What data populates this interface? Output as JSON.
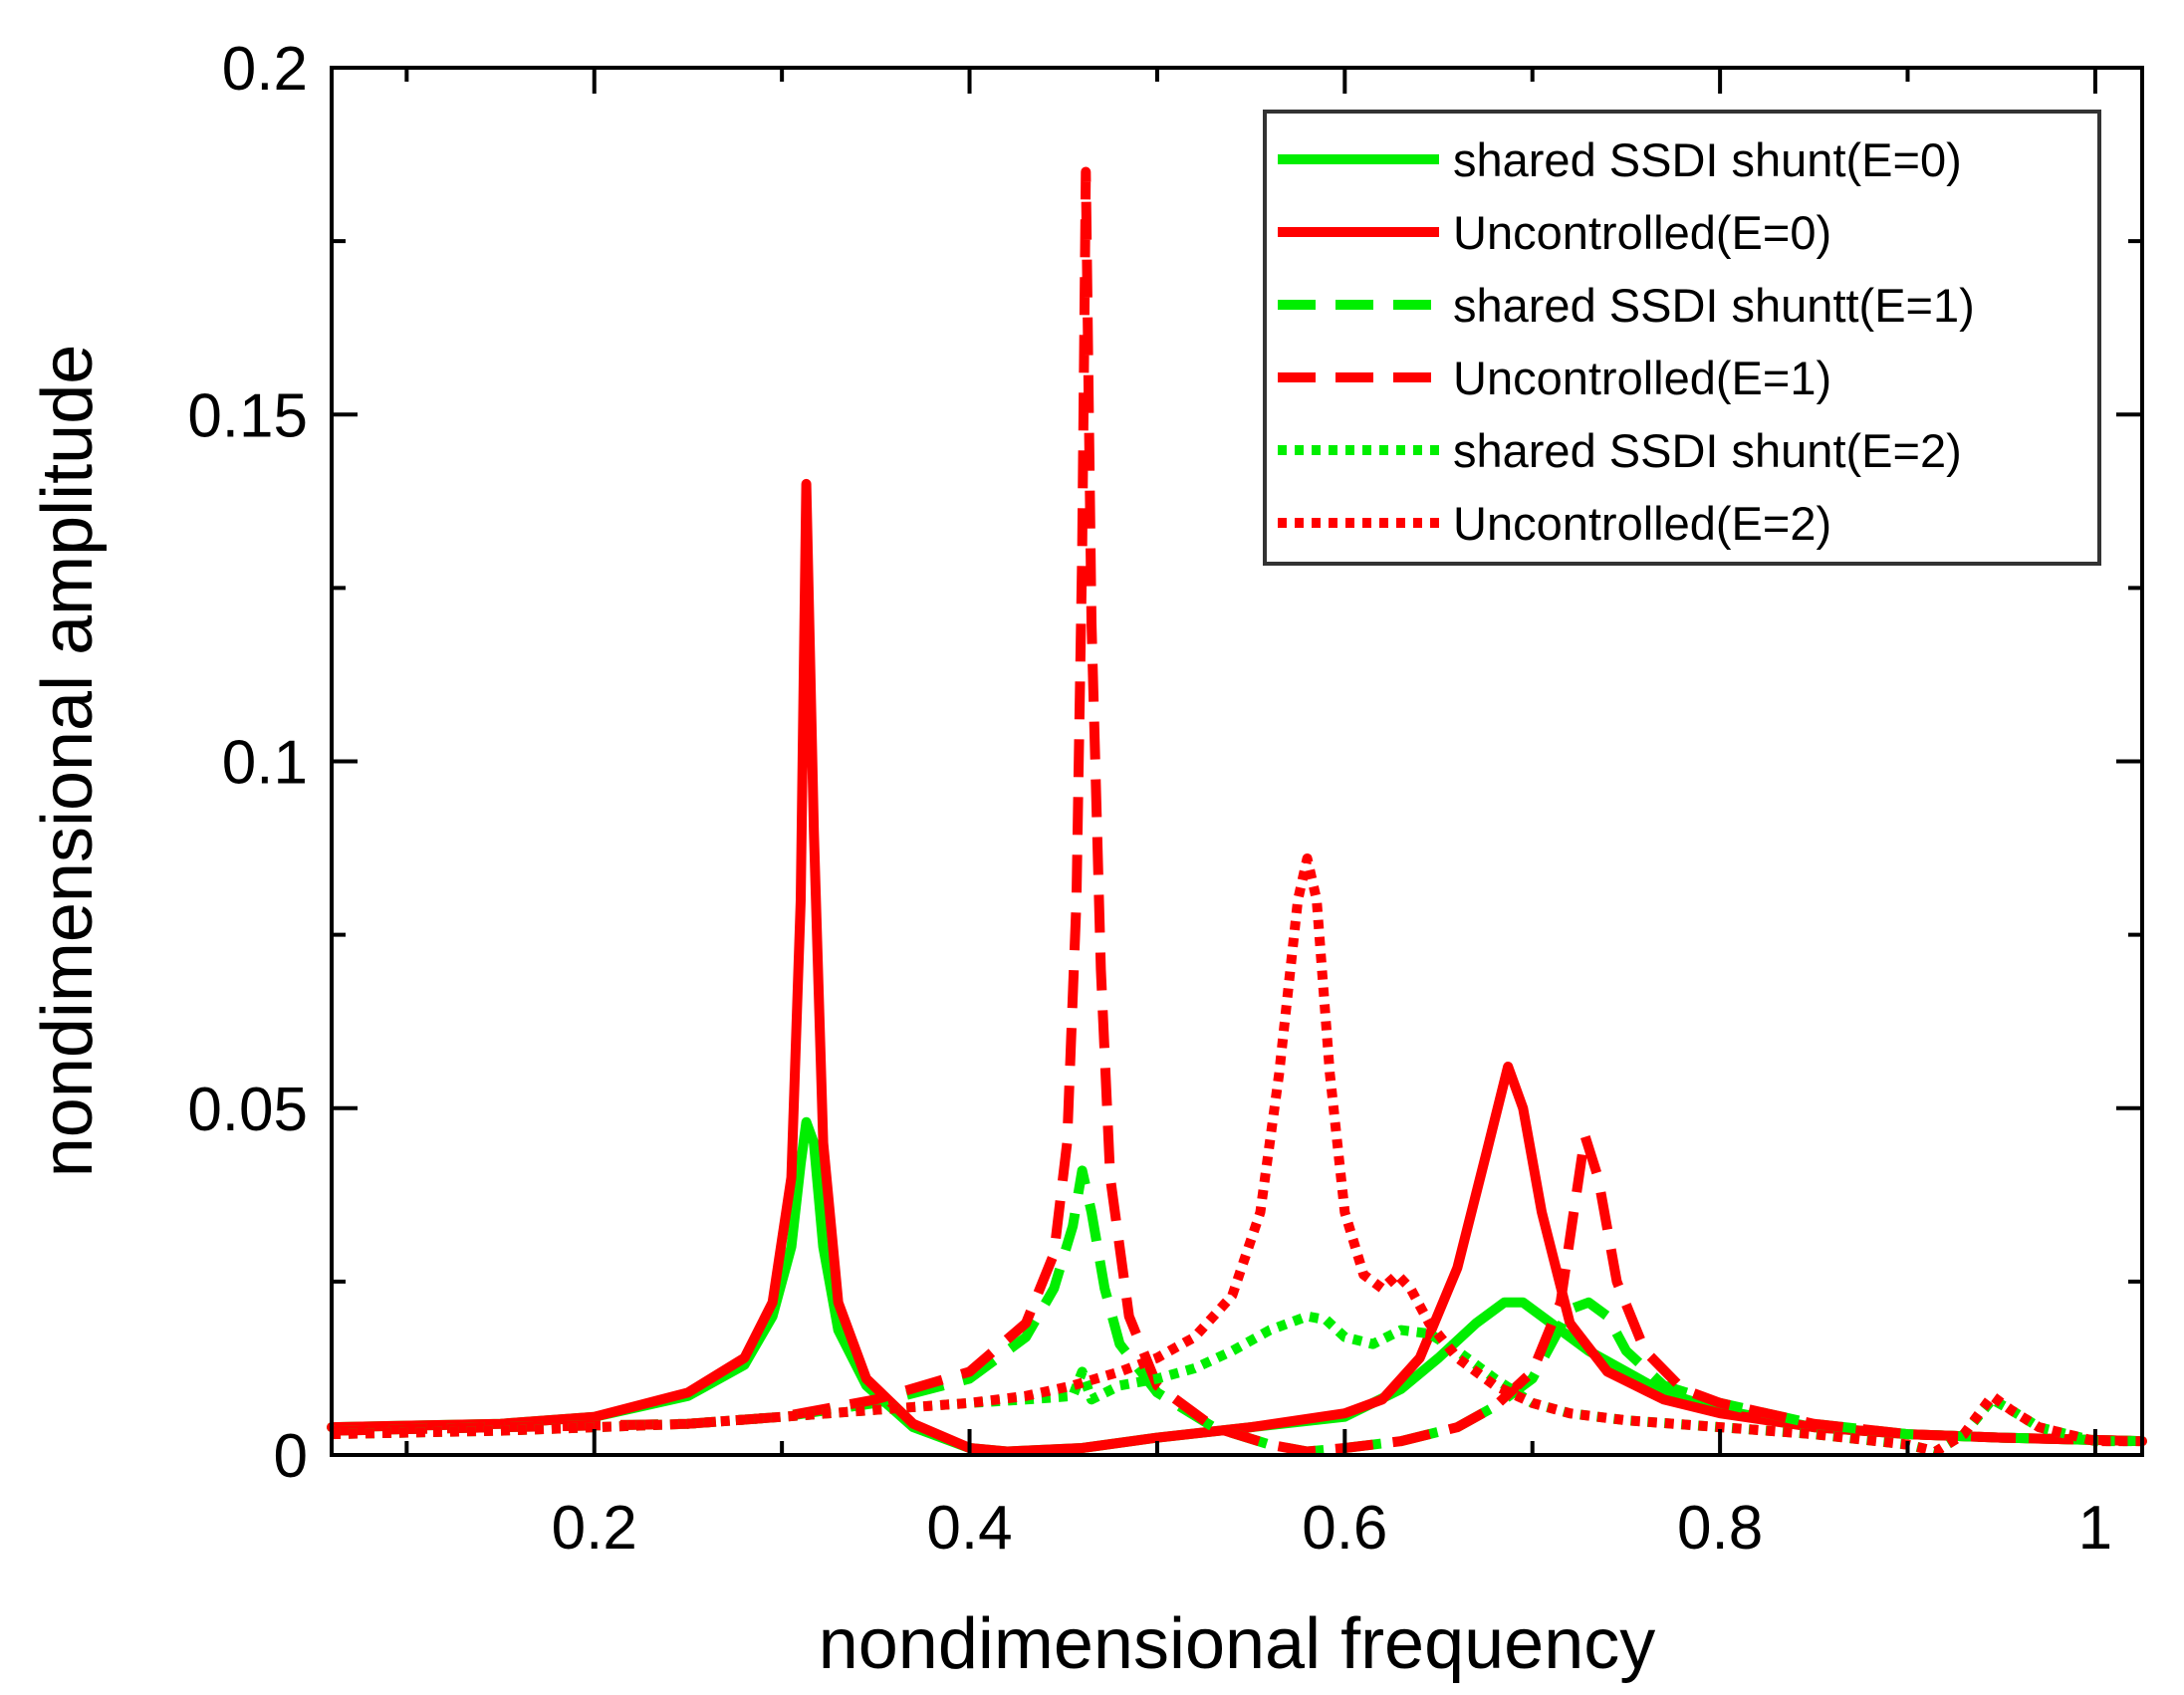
{
  "chart_data": {
    "type": "line",
    "title": "",
    "xlabel": "nondimensional frequency",
    "ylabel": "nondimensional amplitude",
    "xlim": [
      0.06,
      1.025
    ],
    "ylim": [
      0,
      0.2
    ],
    "x_ticks": [
      {
        "value": 0.2,
        "label": "0.2"
      },
      {
        "value": 0.4,
        "label": "0.4"
      },
      {
        "value": 0.6,
        "label": "0.6"
      },
      {
        "value": 0.8,
        "label": "0.8"
      },
      {
        "value": 1.0,
        "label": "1"
      }
    ],
    "y_ticks": [
      {
        "value": 0,
        "label": "0"
      },
      {
        "value": 0.05,
        "label": "0.05"
      },
      {
        "value": 0.1,
        "label": "0.1"
      },
      {
        "value": 0.15,
        "label": "0.15"
      },
      {
        "value": 0.2,
        "label": "0.2"
      }
    ],
    "legend_position": "top-right",
    "grid": false,
    "series": [
      {
        "name": "shared SSDI shunt(E=0)",
        "color": "#00ee00",
        "style": "solid",
        "points": [
          [
            0.06,
            0.004
          ],
          [
            0.15,
            0.0045
          ],
          [
            0.2,
            0.0055
          ],
          [
            0.25,
            0.0085
          ],
          [
            0.28,
            0.013
          ],
          [
            0.295,
            0.02
          ],
          [
            0.305,
            0.03
          ],
          [
            0.31,
            0.042
          ],
          [
            0.313,
            0.048
          ],
          [
            0.317,
            0.045
          ],
          [
            0.322,
            0.03
          ],
          [
            0.33,
            0.018
          ],
          [
            0.345,
            0.01
          ],
          [
            0.37,
            0.004
          ],
          [
            0.4,
            0.001
          ],
          [
            0.42,
            0.0005
          ],
          [
            0.46,
            0.001
          ],
          [
            0.5,
            0.0025
          ],
          [
            0.55,
            0.004
          ],
          [
            0.6,
            0.0055
          ],
          [
            0.63,
            0.0095
          ],
          [
            0.65,
            0.014
          ],
          [
            0.67,
            0.019
          ],
          [
            0.685,
            0.022
          ],
          [
            0.695,
            0.022
          ],
          [
            0.71,
            0.019
          ],
          [
            0.73,
            0.015
          ],
          [
            0.75,
            0.012
          ],
          [
            0.77,
            0.009
          ],
          [
            0.8,
            0.0065
          ],
          [
            0.85,
            0.004
          ],
          [
            0.9,
            0.003
          ],
          [
            0.95,
            0.0025
          ],
          [
            1.025,
            0.002
          ]
        ]
      },
      {
        "name": "Uncontrolled(E=0)",
        "color": "#ff0000",
        "style": "solid",
        "points": [
          [
            0.06,
            0.004
          ],
          [
            0.15,
            0.0045
          ],
          [
            0.2,
            0.0055
          ],
          [
            0.25,
            0.009
          ],
          [
            0.28,
            0.014
          ],
          [
            0.295,
            0.022
          ],
          [
            0.305,
            0.04
          ],
          [
            0.31,
            0.08
          ],
          [
            0.313,
            0.14
          ],
          [
            0.317,
            0.09
          ],
          [
            0.322,
            0.045
          ],
          [
            0.33,
            0.022
          ],
          [
            0.345,
            0.011
          ],
          [
            0.37,
            0.0045
          ],
          [
            0.4,
            0.001
          ],
          [
            0.42,
            0.0005
          ],
          [
            0.46,
            0.001
          ],
          [
            0.5,
            0.0025
          ],
          [
            0.55,
            0.004
          ],
          [
            0.6,
            0.006
          ],
          [
            0.62,
            0.008
          ],
          [
            0.64,
            0.014
          ],
          [
            0.66,
            0.027
          ],
          [
            0.675,
            0.043
          ],
          [
            0.687,
            0.056
          ],
          [
            0.695,
            0.05
          ],
          [
            0.705,
            0.035
          ],
          [
            0.72,
            0.019
          ],
          [
            0.74,
            0.012
          ],
          [
            0.77,
            0.008
          ],
          [
            0.8,
            0.006
          ],
          [
            0.85,
            0.004
          ],
          [
            0.9,
            0.003
          ],
          [
            0.95,
            0.0025
          ],
          [
            1.025,
            0.002
          ]
        ]
      },
      {
        "name": "shared SSDI shuntt(E=1)",
        "color": "#00ee00",
        "style": "dashed",
        "points": [
          [
            0.06,
            0.0035
          ],
          [
            0.15,
            0.004
          ],
          [
            0.25,
            0.0045
          ],
          [
            0.3,
            0.0055
          ],
          [
            0.35,
            0.0075
          ],
          [
            0.4,
            0.011
          ],
          [
            0.43,
            0.017
          ],
          [
            0.445,
            0.024
          ],
          [
            0.455,
            0.033
          ],
          [
            0.46,
            0.041
          ],
          [
            0.465,
            0.035
          ],
          [
            0.472,
            0.024
          ],
          [
            0.48,
            0.016
          ],
          [
            0.5,
            0.009
          ],
          [
            0.53,
            0.004
          ],
          [
            0.56,
            0.0015
          ],
          [
            0.58,
            0.0005
          ],
          [
            0.6,
            0.001
          ],
          [
            0.63,
            0.002
          ],
          [
            0.66,
            0.004
          ],
          [
            0.68,
            0.007
          ],
          [
            0.7,
            0.011
          ],
          [
            0.71,
            0.016
          ],
          [
            0.72,
            0.021
          ],
          [
            0.73,
            0.022
          ],
          [
            0.74,
            0.02
          ],
          [
            0.75,
            0.015
          ],
          [
            0.77,
            0.01
          ],
          [
            0.8,
            0.0075
          ],
          [
            0.85,
            0.0045
          ],
          [
            0.9,
            0.003
          ],
          [
            0.95,
            0.0025
          ],
          [
            1.025,
            0.002
          ]
        ]
      },
      {
        "name": "Uncontrolled(E=1)",
        "color": "#ff0000",
        "style": "dashed",
        "points": [
          [
            0.06,
            0.0035
          ],
          [
            0.15,
            0.004
          ],
          [
            0.25,
            0.0045
          ],
          [
            0.3,
            0.0055
          ],
          [
            0.35,
            0.008
          ],
          [
            0.4,
            0.012
          ],
          [
            0.43,
            0.019
          ],
          [
            0.445,
            0.029
          ],
          [
            0.452,
            0.045
          ],
          [
            0.457,
            0.08
          ],
          [
            0.46,
            0.13
          ],
          [
            0.462,
            0.185
          ],
          [
            0.465,
            0.12
          ],
          [
            0.47,
            0.07
          ],
          [
            0.475,
            0.04
          ],
          [
            0.485,
            0.02
          ],
          [
            0.5,
            0.01
          ],
          [
            0.53,
            0.004
          ],
          [
            0.56,
            0.0015
          ],
          [
            0.58,
            0.0005
          ],
          [
            0.6,
            0.001
          ],
          [
            0.63,
            0.002
          ],
          [
            0.66,
            0.004
          ],
          [
            0.68,
            0.007
          ],
          [
            0.7,
            0.012
          ],
          [
            0.715,
            0.022
          ],
          [
            0.722,
            0.035
          ],
          [
            0.728,
            0.046
          ],
          [
            0.735,
            0.04
          ],
          [
            0.745,
            0.025
          ],
          [
            0.76,
            0.015
          ],
          [
            0.78,
            0.0095
          ],
          [
            0.8,
            0.0075
          ],
          [
            0.85,
            0.0045
          ],
          [
            0.9,
            0.003
          ],
          [
            0.95,
            0.0025
          ],
          [
            1.025,
            0.002
          ]
        ]
      },
      {
        "name": "shared SSDI shunt(E=2)",
        "color": "#00ee00",
        "style": "dotted",
        "points": [
          [
            0.06,
            0.003
          ],
          [
            0.15,
            0.0035
          ],
          [
            0.25,
            0.0045
          ],
          [
            0.3,
            0.0055
          ],
          [
            0.35,
            0.0065
          ],
          [
            0.4,
            0.0075
          ],
          [
            0.43,
            0.008
          ],
          [
            0.455,
            0.0085
          ],
          [
            0.46,
            0.012
          ],
          [
            0.465,
            0.008
          ],
          [
            0.48,
            0.01
          ],
          [
            0.5,
            0.011
          ],
          [
            0.52,
            0.0125
          ],
          [
            0.54,
            0.015
          ],
          [
            0.56,
            0.018
          ],
          [
            0.58,
            0.02
          ],
          [
            0.59,
            0.0195
          ],
          [
            0.6,
            0.017
          ],
          [
            0.615,
            0.016
          ],
          [
            0.63,
            0.018
          ],
          [
            0.645,
            0.0175
          ],
          [
            0.66,
            0.015
          ],
          [
            0.68,
            0.011
          ],
          [
            0.7,
            0.0075
          ],
          [
            0.72,
            0.006
          ],
          [
            0.75,
            0.005
          ],
          [
            0.8,
            0.004
          ],
          [
            0.85,
            0.003
          ],
          [
            0.9,
            0.0015
          ],
          [
            0.915,
            0.0005
          ],
          [
            0.93,
            0.003
          ],
          [
            0.945,
            0.008
          ],
          [
            0.955,
            0.0065
          ],
          [
            0.97,
            0.004
          ],
          [
            1.0,
            0.002
          ],
          [
            1.025,
            0.002
          ]
        ]
      },
      {
        "name": "Uncontrolled(E=2)",
        "color": "#ff0000",
        "style": "dotted",
        "points": [
          [
            0.06,
            0.003
          ],
          [
            0.15,
            0.0035
          ],
          [
            0.25,
            0.0045
          ],
          [
            0.3,
            0.0055
          ],
          [
            0.35,
            0.0065
          ],
          [
            0.4,
            0.0075
          ],
          [
            0.43,
            0.0085
          ],
          [
            0.455,
            0.01
          ],
          [
            0.48,
            0.012
          ],
          [
            0.5,
            0.014
          ],
          [
            0.52,
            0.017
          ],
          [
            0.54,
            0.023
          ],
          [
            0.555,
            0.035
          ],
          [
            0.565,
            0.055
          ],
          [
            0.575,
            0.08
          ],
          [
            0.58,
            0.086
          ],
          [
            0.585,
            0.08
          ],
          [
            0.592,
            0.055
          ],
          [
            0.6,
            0.035
          ],
          [
            0.61,
            0.026
          ],
          [
            0.62,
            0.024
          ],
          [
            0.628,
            0.026
          ],
          [
            0.635,
            0.024
          ],
          [
            0.645,
            0.019
          ],
          [
            0.66,
            0.014
          ],
          [
            0.68,
            0.01
          ],
          [
            0.7,
            0.0075
          ],
          [
            0.72,
            0.006
          ],
          [
            0.75,
            0.005
          ],
          [
            0.8,
            0.004
          ],
          [
            0.85,
            0.003
          ],
          [
            0.9,
            0.0015
          ],
          [
            0.915,
            0.0005
          ],
          [
            0.93,
            0.003
          ],
          [
            0.945,
            0.0085
          ],
          [
            0.955,
            0.0065
          ],
          [
            0.97,
            0.004
          ],
          [
            1.0,
            0.002
          ],
          [
            1.025,
            0.002
          ]
        ]
      }
    ]
  }
}
